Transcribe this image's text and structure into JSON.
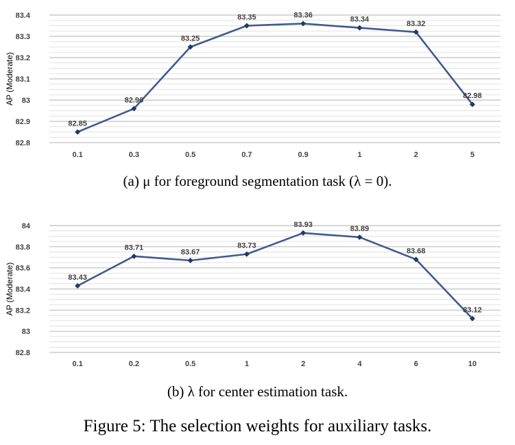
{
  "chart_data": [
    {
      "type": "line",
      "ylabel": "AP (Moderate)",
      "categories": [
        "0.1",
        "0.3",
        "0.5",
        "0.7",
        "0.9",
        "1",
        "2",
        "5"
      ],
      "values": [
        82.85,
        82.96,
        83.25,
        83.35,
        83.36,
        83.34,
        83.32,
        82.98
      ],
      "data_labels": [
        "82.85",
        "82.96",
        "83.25",
        "83.35",
        "83.36",
        "83.34",
        "83.32",
        "82.98"
      ],
      "ylim": [
        82.8,
        83.4
      ],
      "y_ticks": [
        "82.8",
        "82.9",
        "83",
        "83.1",
        "83.2",
        "83.3",
        "83.4"
      ],
      "grid": true,
      "color": "#3f5b8f"
    },
    {
      "type": "line",
      "ylabel": "AP (Moderate)",
      "categories": [
        "0.1",
        "0.2",
        "0.5",
        "1",
        "2",
        "4",
        "6",
        "10"
      ],
      "values": [
        83.43,
        83.71,
        83.67,
        83.73,
        83.93,
        83.89,
        83.68,
        83.12
      ],
      "data_labels": [
        "83.43",
        "83.71",
        "83.67",
        "83.73",
        "83.93",
        "83.89",
        "83.68",
        "83.12"
      ],
      "ylim": [
        82.8,
        84.0
      ],
      "y_ticks": [
        "82.8",
        "83",
        "83.2",
        "83.4",
        "83.6",
        "83.8",
        "84"
      ],
      "grid": true,
      "color": "#3f5b8f"
    }
  ],
  "captions": {
    "a": "(a) μ for foreground segmentation task (λ = 0).",
    "b": "(b) λ for center estimation task.",
    "figure": "Figure 5: The selection weights for auxiliary tasks."
  }
}
